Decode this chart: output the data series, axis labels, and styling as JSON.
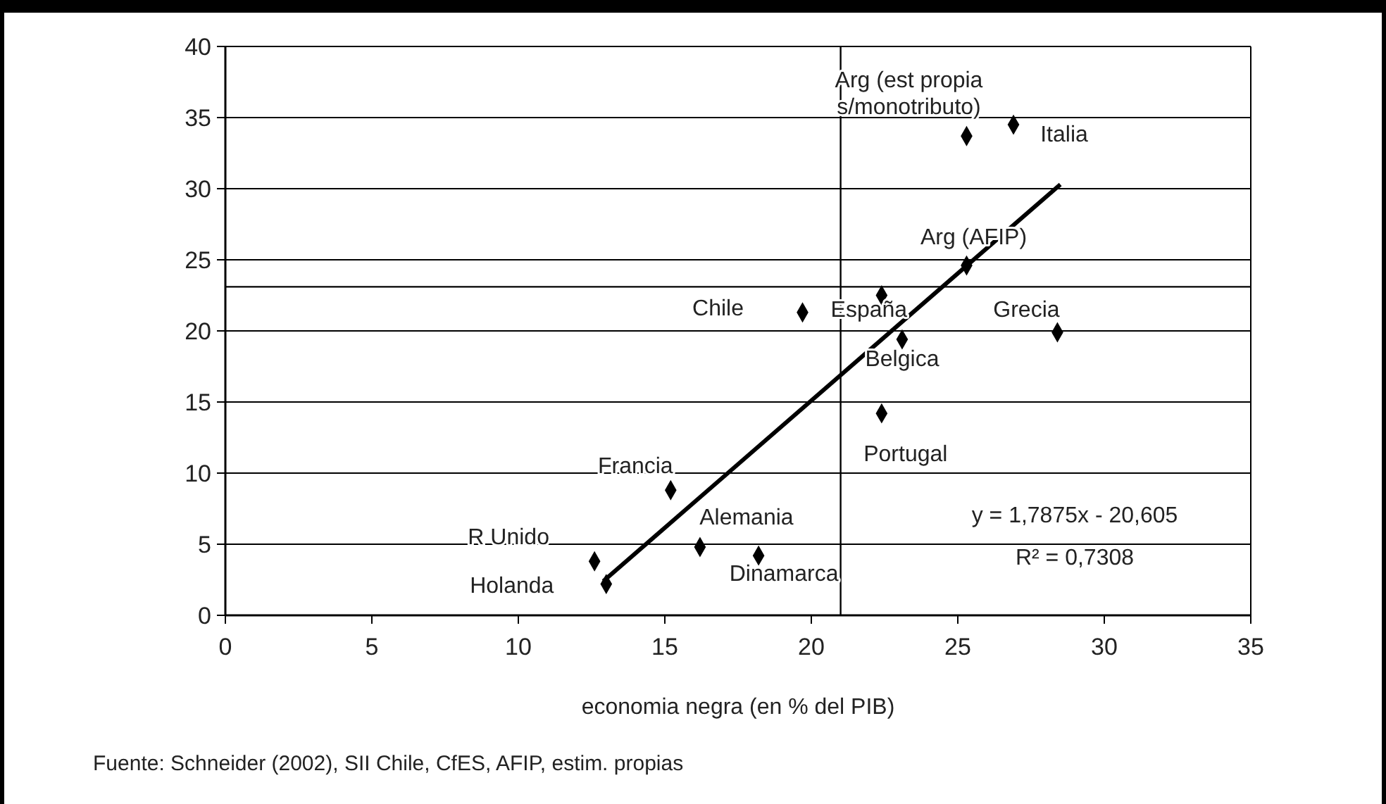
{
  "chart_data": {
    "type": "scatter",
    "xlabel": "economia negra (en % del PIB)",
    "xlim": [
      0,
      35
    ],
    "xticks": [
      0,
      5,
      10,
      15,
      20,
      25,
      30,
      35
    ],
    "ylim": [
      0,
      40
    ],
    "yticks": [
      0,
      5,
      10,
      15,
      20,
      25,
      30,
      35,
      40
    ],
    "grid": "y",
    "marker": "diamond",
    "series": [
      {
        "color": "#000000",
        "x": [
          12.6,
          13.0,
          15.2,
          16.2,
          18.2,
          19.7,
          22.4,
          23.1,
          22.4,
          25.3,
          25.3,
          26.9,
          28.4
        ],
        "values": [
          3.8,
          2.2,
          8.8,
          4.8,
          4.2,
          21.3,
          22.5,
          19.4,
          14.2,
          24.6,
          33.7,
          34.5,
          19.9
        ]
      },
      {
        "type": "line",
        "color": "#000000",
        "marker": "none",
        "line_style": "solid",
        "x": [
          12.9,
          28.5
        ],
        "values": [
          2.4,
          30.3
        ]
      }
    ],
    "ref_lines": [
      {
        "axis": "x",
        "value": 21.0,
        "color": "#000000"
      },
      {
        "axis": "y",
        "value": 23.1,
        "color": "#000000"
      }
    ],
    "annotations": [
      {
        "text": "Arg (est propia\ns/monotributo)",
        "x": 25.3,
        "y": 33.7
      },
      {
        "text": "Italia",
        "x": 26.9,
        "y": 34.5
      },
      {
        "text": "Arg (AFIP)",
        "x": 25.3,
        "y": 24.6
      },
      {
        "text": "Chile",
        "x": 19.7,
        "y": 21.3
      },
      {
        "text": "España",
        "x": 22.4,
        "y": 22.5
      },
      {
        "text": "Grecia",
        "x": 28.4,
        "y": 19.9
      },
      {
        "text": "Belgica",
        "x": 23.1,
        "y": 19.4
      },
      {
        "text": "Portugal",
        "x": 22.4,
        "y": 14.2
      },
      {
        "text": "Francia",
        "x": 15.2,
        "y": 8.8
      },
      {
        "text": "Alemania",
        "x": 16.2,
        "y": 4.8
      },
      {
        "text": "R Unido",
        "x": 12.6,
        "y": 3.8
      },
      {
        "text": "Dinamarca",
        "x": 18.2,
        "y": 4.2
      },
      {
        "text": "Holanda",
        "x": 13.0,
        "y": 2.2
      },
      "y = 1,7875x - 20,605",
      "R² = 0,7308",
      "Fuente: Schneider (2002), SII Chile, CfES, AFIP, estim. propias"
    ]
  }
}
